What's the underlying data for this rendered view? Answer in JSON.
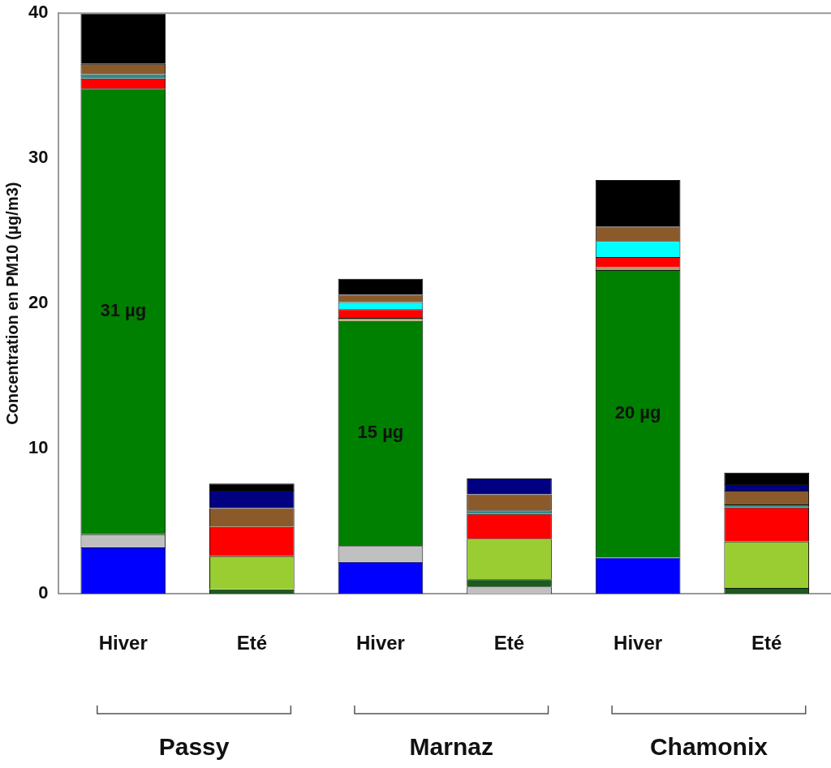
{
  "chart_data": {
    "type": "bar",
    "stacked": true,
    "ylabel": "Concentration en PM10 (µg/m3)",
    "categories": [
      "Hiver",
      "Eté",
      "Hiver",
      "Eté",
      "Hiver",
      "Eté"
    ],
    "annotations": [
      "Passy",
      "Marnaz",
      "Chamonix"
    ],
    "ylim": [
      0,
      40
    ],
    "yticks": [
      0,
      10,
      20,
      30,
      40
    ],
    "grid": false,
    "legend": false,
    "series": [
      {
        "color": "#0000ff",
        "values": [
          3.2,
          null,
          2.2,
          null,
          2.5,
          null
        ]
      },
      {
        "color": "#c0c0c0",
        "values": [
          0.9,
          null,
          1.1,
          0.5,
          null,
          null
        ]
      },
      {
        "color": "#1a5c1a",
        "values": [
          null,
          0.3,
          null,
          0.5,
          null,
          0.4
        ]
      },
      {
        "color": "#9acd32",
        "values": [
          null,
          2.3,
          null,
          2.8,
          null,
          3.2
        ]
      },
      {
        "color": "#008000",
        "values": [
          30.7,
          null,
          15.5,
          null,
          19.8,
          null
        ],
        "value_labels": [
          "31 µg",
          null,
          "15 µg",
          null,
          "20 µg",
          null
        ]
      },
      {
        "color": "#b5a562",
        "values": [
          null,
          null,
          0.2,
          null,
          0.2,
          null
        ]
      },
      {
        "color": "#ff0000",
        "values": [
          0.7,
          2.0,
          0.6,
          1.7,
          0.7,
          2.35
        ]
      },
      {
        "color": "#2e8b8b",
        "values": [
          0.3,
          null,
          null,
          0.25,
          null,
          0.2
        ]
      },
      {
        "color": "#00ffff",
        "values": [
          null,
          null,
          0.5,
          null,
          1.1,
          null
        ]
      },
      {
        "color": "#8b5a2b",
        "values": [
          0.7,
          1.3,
          0.5,
          1.1,
          1.0,
          0.95
        ]
      },
      {
        "color": "#000080",
        "values": [
          null,
          1.2,
          null,
          1.1,
          null,
          0.45
        ]
      },
      {
        "color": "#000000",
        "values": [
          3.5,
          0.5,
          1.1,
          null,
          3.2,
          0.8
        ]
      }
    ]
  }
}
